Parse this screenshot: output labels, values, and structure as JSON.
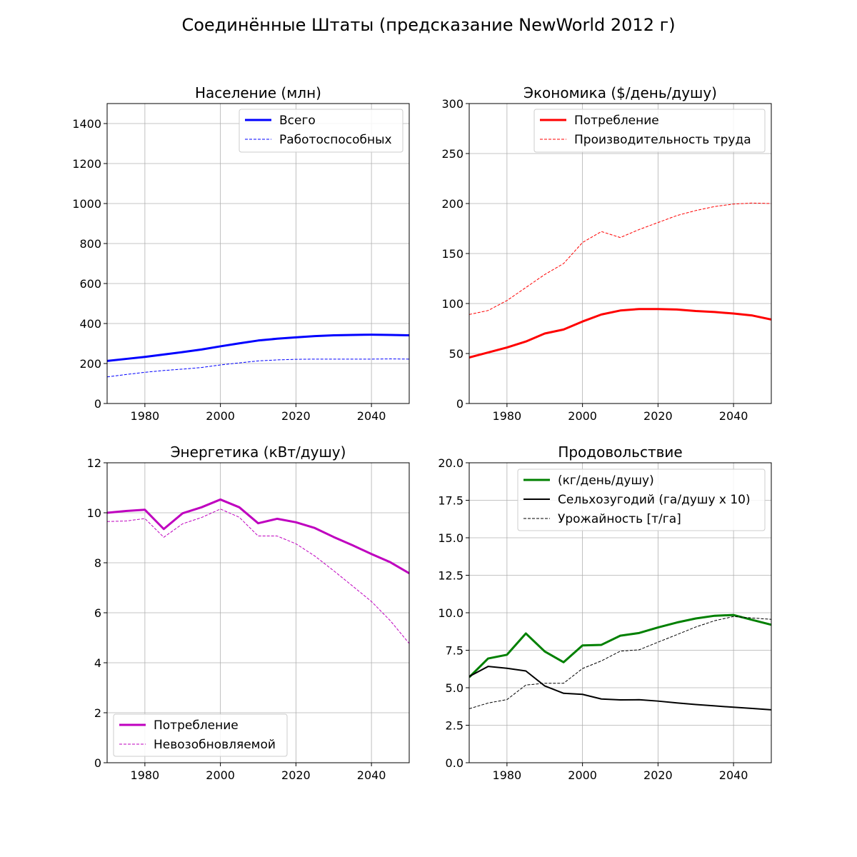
{
  "figure": {
    "title": "Соединённые Штаты (предсказание NewWorld 2012 г)"
  },
  "chart_data": [
    {
      "type": "line",
      "title": "Население (млн)",
      "xlim": [
        1970,
        2050
      ],
      "ylim": [
        0,
        1500
      ],
      "xticks": [
        1980,
        2000,
        2020,
        2040
      ],
      "yticks": [
        0,
        200,
        400,
        600,
        800,
        1000,
        1200,
        1400
      ],
      "ytick_labels": [
        "0",
        "200",
        "400",
        "600",
        "800",
        "1000",
        "1200",
        "1400"
      ],
      "grid": true,
      "legend": "top-right",
      "x": [
        1970,
        1975,
        1980,
        1985,
        1990,
        1995,
        2000,
        2005,
        2010,
        2015,
        2020,
        2025,
        2030,
        2035,
        2040,
        2045,
        2050
      ],
      "series": [
        {
          "name": "Всего",
          "color": "#0000ff",
          "style": "solid",
          "width": 3,
          "values": [
            213,
            223,
            233,
            245,
            257,
            270,
            286,
            301,
            315,
            324,
            331,
            337,
            341,
            343,
            344,
            343,
            341
          ]
        },
        {
          "name": "Работоспособных",
          "color": "#0000ff",
          "style": "dashed",
          "width": 1,
          "values": [
            133,
            145,
            156,
            165,
            172,
            180,
            193,
            203,
            213,
            218,
            221,
            222,
            222,
            222,
            222,
            223,
            222
          ]
        }
      ]
    },
    {
      "type": "line",
      "title": "Экономика ($/день/душу)",
      "xlim": [
        1970,
        2050
      ],
      "ylim": [
        0,
        300
      ],
      "xticks": [
        1980,
        2000,
        2020,
        2040
      ],
      "yticks": [
        0,
        50,
        100,
        150,
        200,
        250,
        300
      ],
      "ytick_labels": [
        "0",
        "50",
        "100",
        "150",
        "200",
        "250",
        "300"
      ],
      "grid": true,
      "legend": "top-center",
      "x": [
        1970,
        1975,
        1980,
        1985,
        1990,
        1995,
        2000,
        2005,
        2010,
        2015,
        2020,
        2025,
        2030,
        2035,
        2040,
        2045,
        2050
      ],
      "series": [
        {
          "name": "Потребление",
          "color": "#ff0000",
          "style": "solid",
          "width": 3,
          "values": [
            46,
            51,
            56,
            62,
            70,
            74,
            82,
            89,
            93,
            94.5,
            94.5,
            94,
            92.5,
            91.5,
            90,
            88,
            84
          ]
        },
        {
          "name": "Производительность труда",
          "color": "#ff0000",
          "style": "dashed",
          "width": 1,
          "values": [
            89,
            93,
            103,
            116,
            129,
            140,
            161,
            172,
            166,
            174,
            181,
            188,
            193,
            197,
            199.5,
            200.5,
            200
          ]
        }
      ]
    },
    {
      "type": "line",
      "title": "Энергетика (кВт/душу)",
      "xlim": [
        1970,
        2050
      ],
      "ylim": [
        0,
        12
      ],
      "xticks": [
        1980,
        2000,
        2020,
        2040
      ],
      "yticks": [
        0,
        2,
        4,
        6,
        8,
        10,
        12
      ],
      "ytick_labels": [
        "0",
        "2",
        "4",
        "6",
        "8",
        "10",
        "12"
      ],
      "grid": true,
      "legend": "bottom-left",
      "x": [
        1970,
        1975,
        1980,
        1985,
        1990,
        1995,
        2000,
        2005,
        2010,
        2015,
        2020,
        2025,
        2030,
        2035,
        2040,
        2045,
        2050
      ],
      "series": [
        {
          "name": "Потребление",
          "color": "#bf00bf",
          "style": "solid",
          "width": 3,
          "values": [
            10.0,
            10.07,
            10.12,
            9.35,
            9.98,
            10.22,
            10.53,
            10.22,
            9.58,
            9.76,
            9.62,
            9.39,
            9.03,
            8.7,
            8.35,
            8.02,
            7.58
          ]
        },
        {
          "name": "Невозобновляемой",
          "color": "#bf00bf",
          "style": "dashed",
          "width": 1,
          "values": [
            9.65,
            9.67,
            9.77,
            9.02,
            9.56,
            9.81,
            10.15,
            9.82,
            9.07,
            9.07,
            8.76,
            8.27,
            7.68,
            7.07,
            6.45,
            5.68,
            4.77
          ]
        }
      ]
    },
    {
      "type": "line",
      "title": "Продовольствие",
      "xlim": [
        1970,
        2050
      ],
      "ylim": [
        0,
        20
      ],
      "xticks": [
        1980,
        2000,
        2020,
        2040
      ],
      "yticks": [
        0,
        2.5,
        5,
        7.5,
        10,
        12.5,
        15,
        17.5,
        20
      ],
      "ytick_labels": [
        "0.0",
        "2.5",
        "5.0",
        "7.5",
        "10.0",
        "12.5",
        "15.0",
        "17.5",
        "20.0"
      ],
      "grid": true,
      "legend": "top-right",
      "x": [
        1970,
        1975,
        1980,
        1985,
        1990,
        1995,
        2000,
        2005,
        2010,
        2015,
        2020,
        2025,
        2030,
        2035,
        2040,
        2045,
        2050
      ],
      "series": [
        {
          "name": "(кг/день/душу)",
          "color": "#008000",
          "style": "solid",
          "width": 3,
          "values": [
            5.7,
            6.95,
            7.2,
            8.62,
            7.42,
            6.7,
            7.82,
            7.86,
            8.47,
            8.65,
            9.02,
            9.35,
            9.62,
            9.8,
            9.85,
            9.52,
            9.2
          ]
        },
        {
          "name": "Сельхозугодий (га/душу х 10)",
          "color": "#000000",
          "style": "solid",
          "width": 2,
          "values": [
            5.75,
            6.42,
            6.3,
            6.12,
            5.12,
            4.63,
            4.56,
            4.25,
            4.19,
            4.2,
            4.11,
            3.99,
            3.88,
            3.79,
            3.7,
            3.62,
            3.53
          ]
        },
        {
          "name": "Урожайность [т/га]",
          "color": "#000000",
          "style": "dashed",
          "width": 1,
          "values": [
            3.6,
            3.98,
            4.21,
            5.18,
            5.3,
            5.3,
            6.28,
            6.79,
            7.44,
            7.53,
            8.04,
            8.54,
            9.05,
            9.47,
            9.75,
            9.65,
            9.56
          ]
        }
      ]
    }
  ]
}
